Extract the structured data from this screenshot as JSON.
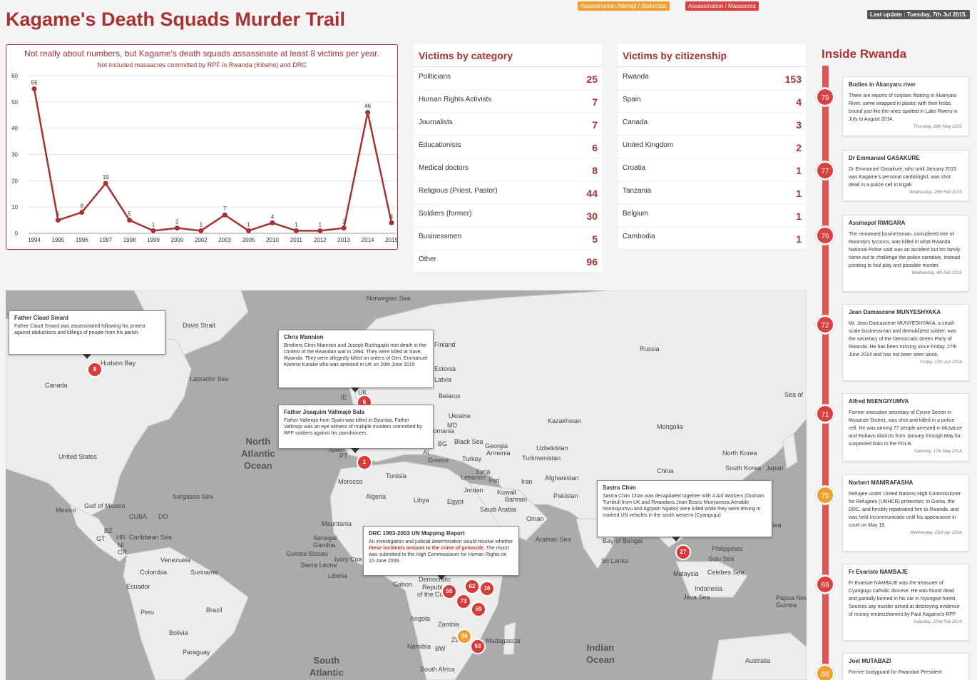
{
  "header": {
    "title": "Kagame's Death Squads Murder Trail",
    "legend_attempt": "Assassination Attempt / Abduction",
    "legend_massacre": "Assassination / Massacres",
    "last_update": "Last update : Tuesday, 7th Jul 2015.",
    "colors": {
      "accent": "#a83232",
      "attempt": "#f0a030",
      "massacre": "#d94040"
    }
  },
  "chart_data": {
    "type": "line",
    "title": "Not really about numbers, but Kagame's death squads assassinate at least 8 victims per year.",
    "subtitle": "Not included massacres committed by RPF in Rwanda (Kibeho) and DRC",
    "x": [
      "1994",
      "1995",
      "1996",
      "1997",
      "1998",
      "1999",
      "2000",
      "2002",
      "2003",
      "2005",
      "2010",
      "2011",
      "2012",
      "2013",
      "2014",
      "2015"
    ],
    "series": [
      {
        "values": [
          55,
          5,
          8,
          19,
          5,
          1,
          2,
          1,
          7,
          1,
          4,
          1,
          1,
          2,
          46,
          4
        ]
      }
    ],
    "ylim": [
      0,
      60
    ],
    "yticks": [
      0,
      10,
      20,
      30,
      40,
      50,
      60
    ],
    "grid": true,
    "color": "#a83232"
  },
  "category": {
    "title": "Victims by category",
    "rows": [
      {
        "label": "Politicians",
        "count": "25"
      },
      {
        "label": "Human Rights Activists",
        "count": "7"
      },
      {
        "label": "Journalists",
        "count": "7"
      },
      {
        "label": "Educationists",
        "count": "6"
      },
      {
        "label": "Medical doctors",
        "count": "8"
      },
      {
        "label": "Religious (Priest, Pastor)",
        "count": "44"
      },
      {
        "label": "Soldiers (former)",
        "count": "30"
      },
      {
        "label": "Businessmen",
        "count": "5"
      },
      {
        "label": "Other",
        "count": "96"
      }
    ]
  },
  "citizenship": {
    "title": "Victims by citizenship",
    "rows": [
      {
        "label": "Rwanda",
        "count": "153"
      },
      {
        "label": "Spain",
        "count": "4"
      },
      {
        "label": "Canada",
        "count": "3"
      },
      {
        "label": "United Kingdom",
        "count": "2"
      },
      {
        "label": "Croatia",
        "count": "1"
      },
      {
        "label": "Tanzania",
        "count": "1"
      },
      {
        "label": "Belgium",
        "count": "1"
      },
      {
        "label": "Cambodia",
        "count": "1"
      }
    ]
  },
  "timeline": {
    "title": "Inside Rwanda",
    "items": [
      {
        "num": "79",
        "kind": "massacre",
        "name": "Bodies in Akanyaru river",
        "text": "There are reports of corpses floating in Akanyaru River, some wrapped in plastic with their limbs bound just like the ones spotted in Lake Rweru in July to August 2014.",
        "date": "Thursday, 28th May 2015."
      },
      {
        "num": "77",
        "kind": "massacre",
        "name": "Dr Emmanuel GASAKURE",
        "text": "Dr Emmanuel Gasakure, who until January 2015 was Kagame's personal cardiologist, was shot dead in a police cell in Kigali.",
        "date": "Wednesday, 25th Feb 2015."
      },
      {
        "num": "76",
        "kind": "massacre",
        "name": "Assinapol RWIGARA",
        "text": "The renowned businessman, considered one of Rwanda's tycoons, was killed in what Rwanda National Police said was an accident but his family came out to challenge the police narrative, instead pointing to foul play and possible murder.",
        "date": "Wednesday, 4th Feb 2015."
      },
      {
        "num": "72",
        "kind": "massacre",
        "name": "Jean Damascene MUNYESHYAKA",
        "text": "Mr. Jean Damascene MUNYESHYAKA, a small-scale businessman and demobilized soldier, was the secretary of the Democratic Green Party of Rwanda. He has been missing since Friday, 27th June 2014 and has not been seen since.",
        "date": "Friday, 27th Jun 2014."
      },
      {
        "num": "71",
        "kind": "massacre",
        "name": "Alfred NSENGIYUMVA",
        "text": "Former executive secretary of Cyuve Sector in Musanze District, was shot and killed in a police cell. He was among 77 people arrested in Musanze and Rubavu districts from January through May for suspected links to the FDLR.",
        "date": "Saturday, 17th May 2014."
      },
      {
        "num": "70",
        "kind": "attempt",
        "name": "Norbert MANIRAFASHA",
        "text": "Refugee under United Nations High Commissioner for Refugees (UNHCR) protection, in Goma, the DRC, and forcibly repatriated him to Rwanda. and was held incommunicado until his appearance in court on May 19.",
        "date": "Wednesday, 23rd Apr 2014."
      },
      {
        "num": "69",
        "kind": "massacre",
        "name": "Fr Evariste NAMBAJE",
        "text": "Fr Evariste NAMBAJE was the treasurer of Cyangugu catholic diocese. He was found dead and partially burned in his car in Nyungwe forest. Sources say murder aimed at destroying evidence of money embezzlement by Paul Kagame's RPF",
        "date": "Saturday, 22nd Feb 2014."
      },
      {
        "num": "66",
        "kind": "attempt",
        "name": "Joel MUTABAZI",
        "text": "Former bodyguard for Rwandan President",
        "date": ""
      }
    ]
  },
  "map": {
    "labels": {
      "norwegian_sea": "Norwegian Sea",
      "davis_strait": "Davis Strait",
      "hudson_bay": "Hudson Bay",
      "canada": "Canada",
      "labrador_sea": "Labrador Sea",
      "russia": "Russia",
      "finland": "Finland",
      "estonia": "Estonia",
      "latvia": "Latvia",
      "belarus": "Belarus",
      "ukraine": "Ukraine",
      "kazakhstan": "Kazakhstan",
      "mongolia": "Mongolia",
      "north_atlantic": "North\nAtlantic\nOcean",
      "united_states": "United States",
      "romania": "Romania",
      "md": "MD",
      "bg": "BG",
      "black_sea": "Black Sea",
      "georgia": "Georgia",
      "armenia": "Armenia",
      "uzbekistan": "Uzbekistan",
      "turkmenistan": "Turkmenistan",
      "north_korea": "North Korea",
      "south_korea": "South Korea",
      "japan": "Japan",
      "sea_of": "Sea of",
      "spain": "Spain",
      "pt": "PT",
      "al": "AL",
      "greece": "Greece",
      "turkey": "Turkey",
      "syria": "Syria",
      "lebanon": "Lebanon",
      "iraq": "Iraq",
      "iran": "Iran",
      "afghanistan": "Afghanistan",
      "china": "China",
      "tunisia": "Tunisia",
      "morocco": "Morocco",
      "sargasso_sea": "Sargasso Sea",
      "algeria": "Algeria",
      "libya": "Libya",
      "egypt": "Egypt",
      "jordan": "Jordan",
      "kuwait": "Kuwait",
      "bahrain": "Bahrain",
      "saudi_arabia": "Saudi Arabia",
      "pakistan": "Pakistan",
      "oman": "Oman",
      "mexico": "Mexico",
      "gulf_of_mexico": "Gulf of Mexico",
      "cuba": "CUBA",
      "do": "DO",
      "bz": "BZ",
      "gt": "GT",
      "hn": "HN",
      "ni": "NI",
      "cr": "CR",
      "caribbean_sea": "Caribbean Sea",
      "mauritania": "Mauritania",
      "senegal": "Senegal",
      "gambia": "Gambia",
      "guinea_bissau": "Guinea-Bissau",
      "sierra_leone": "Sierra Leone",
      "liberia": "Liberia",
      "ivory_coast": "Ivory Coa",
      "arabian_sea": "Arabian Sea",
      "bay_of_bengal": "Bay of Bengal",
      "sri_lanka": "Sri Lanka",
      "philippine_sea": "ppine Sea",
      "philippines": "Philippines",
      "sulu_sea": "Sulu Sea",
      "malaysia": "Malaysia",
      "celebes_sea": "Celebes Sea",
      "indonesia": "Indonesia",
      "java_sea": "Java Sea",
      "papua": "Papua Nev\nGuinea",
      "venezuela": "Venezuela",
      "colombia": "Colombia",
      "suriname": "Suriname",
      "ecuador": "Ecuador",
      "peru": "Peru",
      "brazil": "Brazil",
      "bolivia": "Bolivia",
      "paraguay": "Paraguay",
      "gabon": "Gabon",
      "republic": "Republ",
      "of_the_co": "of the Co",
      "democratic": "Democratic",
      "angola": "Angola",
      "zambia": "Zambia",
      "namibia": "Namibia",
      "bw": "BW",
      "zw": "ZW",
      "madagascar": "Madagascar",
      "south_africa": "South Africa",
      "south_atlantic": "South\nAtlantic",
      "indian_ocean": "Indian\nOcean",
      "australia": "Australia",
      "uk": "UK",
      "ie": "IE"
    },
    "markers": [
      {
        "num": "8",
        "kind": "massacre"
      },
      {
        "num": "6",
        "kind": "massacre"
      },
      {
        "num": "1",
        "kind": "massacre"
      },
      {
        "num": "27",
        "kind": "massacre"
      },
      {
        "num": "62",
        "kind": "massacre"
      },
      {
        "num": "16",
        "kind": "massacre"
      },
      {
        "num": "55",
        "kind": "massacre"
      },
      {
        "num": "73",
        "kind": "massacre"
      },
      {
        "num": "59",
        "kind": "massacre"
      },
      {
        "num": "34",
        "kind": "attempt"
      },
      {
        "num": "63",
        "kind": "massacre"
      }
    ],
    "popups": {
      "smard": {
        "title": "Father Claud Smard",
        "text": "Father Claud Smard was assassinated following his protest against abductions and killings of people from his parish."
      },
      "mannion": {
        "title": "Chris Mannion",
        "text": "Brothers Chris Mannion and Joseph Rushigajiki met death in the context of the Rwandan war in 1994. They were killed at Save, Rwanda. They were allegedly killed on orders of Gen. Emmanuel Karenzi Karake who was arrested in UK on 20th June 2015"
      },
      "sala": {
        "title": "Father Joaquim Vallmajó Sala",
        "text": "Father Vallmojo from Spain was killed in Byumba. Father Vallmojo was an eye witness of multiple murders committed by RPF soldiers against his parishioners."
      },
      "chim": {
        "title": "Sastra Chim",
        "text": "Sastra Chim Chan was decapitated together with 4 Aid Workers (Graham Turnbull from UK and Rwandans Jean Bosco Munyaneza,Aimable Nsensiyumvu and Agrpain Ngabo) were killed while they were driving in marked UN vehicles in the south western (Cyangugu)"
      },
      "drc": {
        "title": "DRC 1993-2003 UN Mapping Report",
        "text_a": "An investigation and judicial determination would resolve whether ",
        "text_hl": "these incidents amount to the crime of genocide.",
        "text_b": " The report was submitted to the High Commissioner for Human Rights on 15 June 2009."
      }
    }
  }
}
